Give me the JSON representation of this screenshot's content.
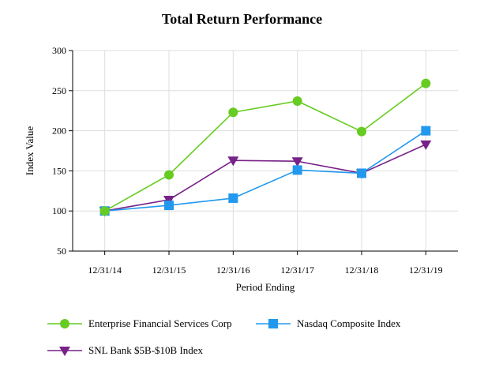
{
  "chart_data": {
    "type": "line",
    "title": "Total Return Performance",
    "xlabel": "Period Ending",
    "ylabel": "Index Value",
    "categories": [
      "12/31/14",
      "12/31/15",
      "12/31/16",
      "12/31/17",
      "12/31/18",
      "12/31/19"
    ],
    "ylim": [
      50,
      300
    ],
    "yticks": [
      50,
      100,
      150,
      200,
      250,
      300
    ],
    "grid": true,
    "legend_position": "bottom",
    "series": [
      {
        "name": "Enterprise Financial Services Corp",
        "values": [
          100,
          145,
          223,
          237,
          199,
          259
        ],
        "color": "#66cc22",
        "marker": "circle"
      },
      {
        "name": "Nasdaq Composite Index",
        "values": [
          100,
          107,
          116,
          151,
          147,
          200
        ],
        "color": "#2299ee",
        "marker": "square"
      },
      {
        "name": "SNL Bank $5B-$10B Index",
        "values": [
          100,
          114,
          163,
          162,
          147,
          183
        ],
        "color": "#772288",
        "marker": "triangle-down"
      }
    ]
  }
}
